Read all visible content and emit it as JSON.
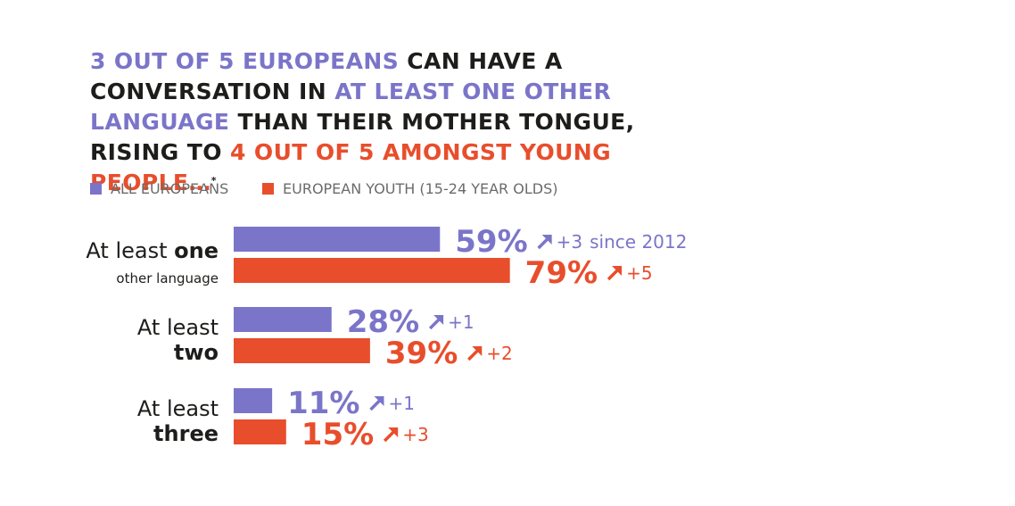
{
  "headline": {
    "p1": "3 OUT OF 5 EUROPEANS",
    "p2": " CAN HAVE A CONVERSATION IN ",
    "p3": "AT LEAST ONE OTHER LANGUAGE",
    "p4": " THAN THEIR MOTHER TONGUE, RISING TO ",
    "p5": "4 OUT OF 5 AMONGST YOUNG PEOPLE…",
    "p6": "*"
  },
  "colors": {
    "all": "#7b75c9",
    "youth": "#e84e2c",
    "text": "#1d1d1b",
    "legend_text": "#6b6b6b"
  },
  "legend": {
    "all": "ALL EUROPEANS",
    "youth": "EUROPEAN YOUTH (15-24 YEAR OLDS)"
  },
  "chart_data": {
    "type": "bar",
    "orientation": "horizontal",
    "unit": "%",
    "categories": [
      {
        "line1": "At least one",
        "line2": "other language",
        "label": "At least one other language"
      },
      {
        "line1": "At least",
        "line2": "two",
        "label": "At least two"
      },
      {
        "line1": "At least",
        "line2": "three",
        "label": "At least three"
      }
    ],
    "series": [
      {
        "name": "ALL EUROPEANS",
        "values": [
          59,
          28,
          11
        ],
        "change": [
          "+3",
          "+1",
          "+1"
        ]
      },
      {
        "name": "EUROPEAN YOUTH (15-24 YEAR OLDS)",
        "values": [
          79,
          39,
          15
        ],
        "change": [
          "+5",
          "+2",
          "+3"
        ]
      }
    ],
    "change_note": "since 2012",
    "xlim": [
      0,
      100
    ],
    "grid": false,
    "legend_position": "top-left"
  }
}
